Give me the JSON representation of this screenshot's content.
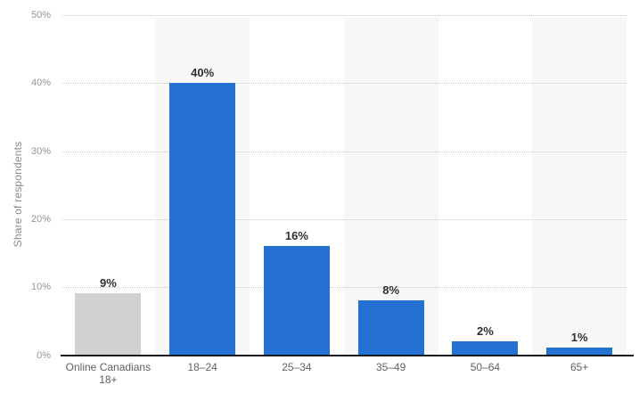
{
  "chart_data": {
    "type": "bar",
    "title": "",
    "ylabel": "Share of respondents",
    "xlabel": "",
    "categories": [
      "Online Canadians\n18+",
      "18–24",
      "25–34",
      "35–49",
      "50–64",
      "65+"
    ],
    "values": [
      9,
      40,
      16,
      8,
      2,
      1
    ],
    "data_labels": [
      "9%",
      "40%",
      "16%",
      "8%",
      "2%",
      "1%"
    ],
    "ylim": [
      0,
      50
    ],
    "y_ticks": [
      0,
      10,
      20,
      30,
      40,
      50
    ],
    "y_tick_labels": [
      "0%",
      "10%",
      "20%",
      "30%",
      "40%",
      "50%"
    ],
    "grid": "horizontal-dotted",
    "legend": "none",
    "bar_colors": [
      "#d1d1d1",
      "#2571d2",
      "#2571d2",
      "#2571d2",
      "#2571d2",
      "#2571d2"
    ],
    "colors": {
      "default_bar": "#2571d2",
      "reference_bar": "#d1d1d1",
      "column_stripe": "#f7f7f8",
      "gridline": "#c7c7c7",
      "axis_line": "#19191e",
      "y_tick_label": "#96969b",
      "category_label": "#606066",
      "value_label": "#303034",
      "axis_title": "#8a8a8e"
    }
  }
}
